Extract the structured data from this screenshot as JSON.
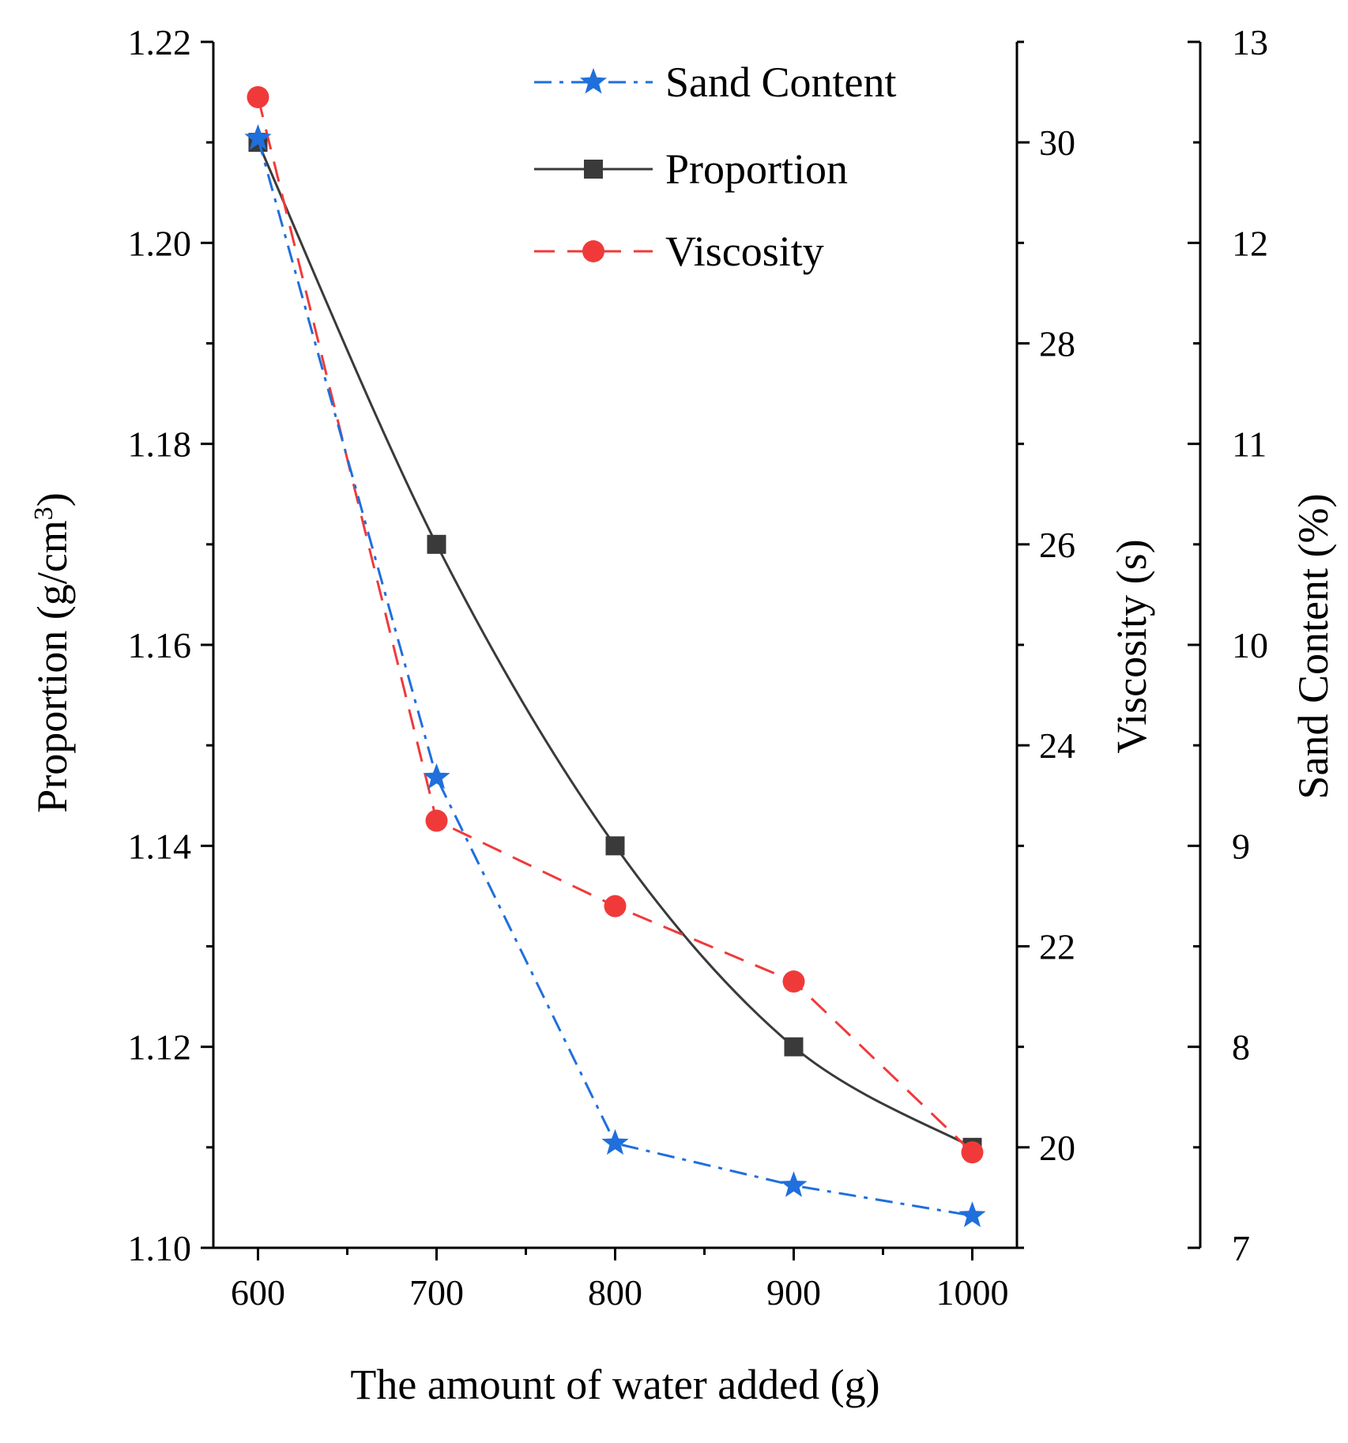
{
  "chart_data": {
    "type": "line",
    "x": [
      600,
      700,
      800,
      900,
      1000
    ],
    "xlabel": "The amount of water added (g)",
    "xlim": [
      575,
      1025
    ],
    "xticks": [
      600,
      700,
      800,
      900,
      1000
    ],
    "xtick_labels": [
      "600",
      "700",
      "800",
      "900",
      "1000"
    ],
    "axes": {
      "proportion": {
        "label": "Proportion (g/cm",
        "label_sup": "3",
        "label_end": ")",
        "range": [
          1.1,
          1.22
        ],
        "ticks": [
          "1.10",
          "1.12",
          "1.14",
          "1.16",
          "1.18",
          "1.20",
          "1.22"
        ]
      },
      "viscosity": {
        "label": "Viscosity (s)",
        "range": [
          19,
          31
        ],
        "ticks": [
          "20",
          "22",
          "24",
          "26",
          "28",
          "30"
        ]
      },
      "sand": {
        "label": "Sand Content (%)",
        "range": [
          7,
          13
        ],
        "ticks": [
          "7",
          "8",
          "9",
          "10",
          "11",
          "12",
          "13"
        ]
      }
    },
    "series": [
      {
        "name": "Sand Content",
        "axis": "sand",
        "values": [
          12.52,
          9.34,
          7.52,
          7.31,
          7.16
        ],
        "color": "#1f6fdc",
        "line_style": "dashdot",
        "marker": "star"
      },
      {
        "name": "Proportion",
        "axis": "proportion",
        "values": [
          1.21,
          1.17,
          1.14,
          1.12,
          1.11
        ],
        "color": "#3a3a3a",
        "line_style": "solid",
        "marker": "square"
      },
      {
        "name": "Viscosity",
        "axis": "viscosity",
        "values": [
          30.45,
          23.25,
          22.4,
          21.65,
          19.95
        ],
        "color": "#f03a3a",
        "line_style": "dashed",
        "marker": "circle"
      }
    ],
    "legend_position": "top-right"
  }
}
